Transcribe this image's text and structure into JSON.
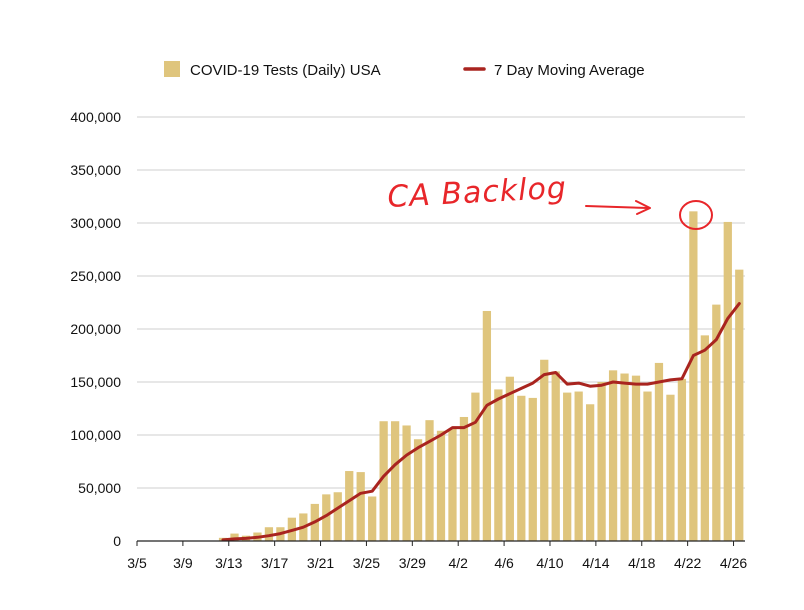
{
  "chart_data": {
    "type": "bar",
    "title": "",
    "xlabel": "",
    "ylabel": "",
    "ylim": [
      0,
      400000
    ],
    "yticks": [
      0,
      50000,
      100000,
      150000,
      200000,
      250000,
      300000,
      350000,
      400000
    ],
    "ytick_labels": [
      "0",
      "50,000",
      "100,000",
      "150,000",
      "200,000",
      "250,000",
      "300,000",
      "350,000",
      "400,000"
    ],
    "categories": [
      "3/5",
      "3/6",
      "3/7",
      "3/8",
      "3/9",
      "3/10",
      "3/11",
      "3/12",
      "3/13",
      "3/14",
      "3/15",
      "3/16",
      "3/17",
      "3/18",
      "3/19",
      "3/20",
      "3/21",
      "3/22",
      "3/23",
      "3/24",
      "3/25",
      "3/26",
      "3/27",
      "3/28",
      "3/29",
      "3/30",
      "3/31",
      "4/1",
      "4/2",
      "4/3",
      "4/4",
      "4/5",
      "4/6",
      "4/7",
      "4/8",
      "4/9",
      "4/10",
      "4/11",
      "4/12",
      "4/13",
      "4/14",
      "4/15",
      "4/16",
      "4/17",
      "4/18",
      "4/19",
      "4/20",
      "4/21",
      "4/22",
      "4/23",
      "4/24",
      "4/25",
      "4/26"
    ],
    "xtick_labels": [
      "3/5",
      "3/9",
      "3/13",
      "3/17",
      "3/21",
      "3/25",
      "3/29",
      "4/2",
      "4/6",
      "4/10",
      "4/14",
      "4/18",
      "4/22",
      "4/26"
    ],
    "grid": true,
    "legend_position": "top",
    "series": [
      {
        "name": "COVID-19 Tests (Daily) USA",
        "kind": "bar",
        "color": "#dfc57d",
        "values": [
          0,
          0,
          0,
          0,
          0,
          0,
          0,
          3000,
          7000,
          5000,
          8000,
          13000,
          13000,
          22000,
          26000,
          35000,
          44000,
          46000,
          66000,
          65000,
          42000,
          113000,
          113000,
          109000,
          96000,
          114000,
          104000,
          106000,
          117000,
          140000,
          217000,
          143000,
          155000,
          137000,
          135000,
          171000,
          160000,
          140000,
          141000,
          129000,
          150000,
          161000,
          158000,
          156000,
          141000,
          168000,
          138000,
          153000,
          311000,
          194000,
          223000,
          301000,
          256000
        ]
      },
      {
        "name": "7 Day Moving Average",
        "kind": "line",
        "color": "#a9241f",
        "values": [
          null,
          null,
          null,
          null,
          null,
          null,
          null,
          1000,
          2000,
          2500,
          3500,
          5000,
          7000,
          10000,
          13000,
          18000,
          24000,
          31000,
          38000,
          45000,
          47000,
          61000,
          72000,
          81000,
          88000,
          94000,
          100000,
          107000,
          107000,
          112000,
          128000,
          134000,
          139000,
          144000,
          149000,
          157000,
          159000,
          148000,
          149000,
          146000,
          147000,
          150000,
          149000,
          148000,
          148000,
          150000,
          152000,
          153000,
          175000,
          180000,
          190000,
          210000,
          224000
        ]
      }
    ],
    "annotations": [
      {
        "text": "CA Backlog",
        "color": "#e8262a",
        "target_category": "4/22"
      }
    ]
  }
}
